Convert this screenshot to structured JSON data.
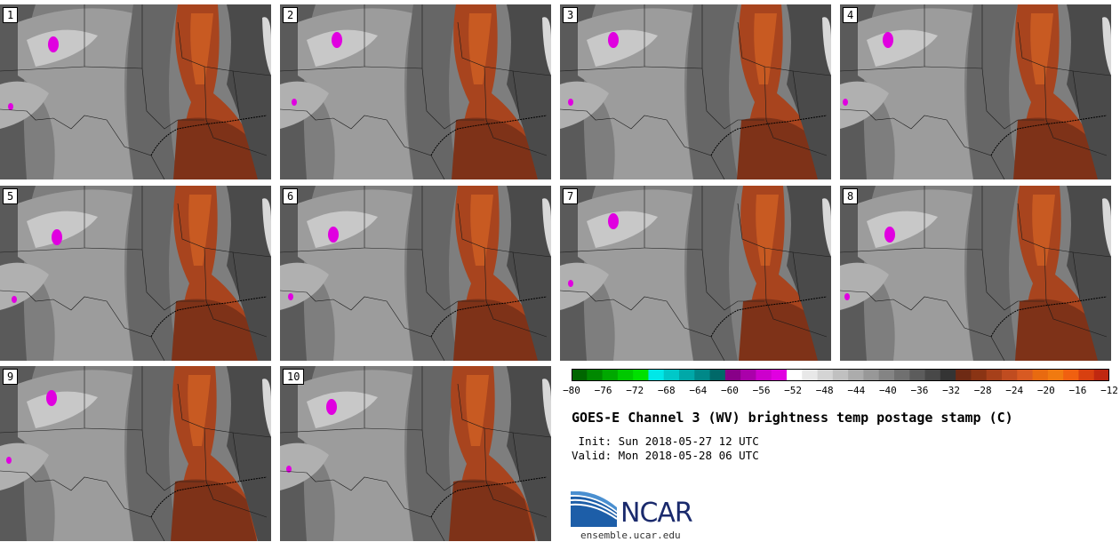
{
  "panels": [
    {
      "label": "1"
    },
    {
      "label": "2"
    },
    {
      "label": "3"
    },
    {
      "label": "4"
    },
    {
      "label": "5"
    },
    {
      "label": "6"
    },
    {
      "label": "7"
    },
    {
      "label": "8"
    },
    {
      "label": "9"
    },
    {
      "label": "10"
    }
  ],
  "colorbar": {
    "ticks": [
      "−80",
      "−76",
      "−72",
      "−68",
      "−64",
      "−60",
      "−56",
      "−52",
      "−48",
      "−44",
      "−40",
      "−36",
      "−32",
      "−28",
      "−24",
      "−20",
      "−16",
      "−12"
    ],
    "colors": [
      "#006600",
      "#008800",
      "#00a800",
      "#00c800",
      "#00e000",
      "#00e8e8",
      "#00c8c8",
      "#00a8a8",
      "#008888",
      "#006868",
      "#880088",
      "#aa00aa",
      "#cc00cc",
      "#e000e0",
      "#ffffff",
      "#e8e8e8",
      "#d4d4d4",
      "#c0c0c0",
      "#acacac",
      "#989898",
      "#848484",
      "#707070",
      "#5c5c5c",
      "#484848",
      "#343434",
      "#6e2a14",
      "#8a3414",
      "#a6401a",
      "#c04c20",
      "#d85a22",
      "#e86a10",
      "#f07a10",
      "#f06010",
      "#d84010",
      "#c02810"
    ]
  },
  "title": "GOES-E Channel 3 (WV) brightness temp postage stamp (C)",
  "init": " Init: Sun 2018-05-27 12 UTC",
  "valid": "Valid: Mon 2018-05-28 06 UTC",
  "logo": {
    "text": "NCAR"
  },
  "url": "ensemble.ucar.edu"
}
